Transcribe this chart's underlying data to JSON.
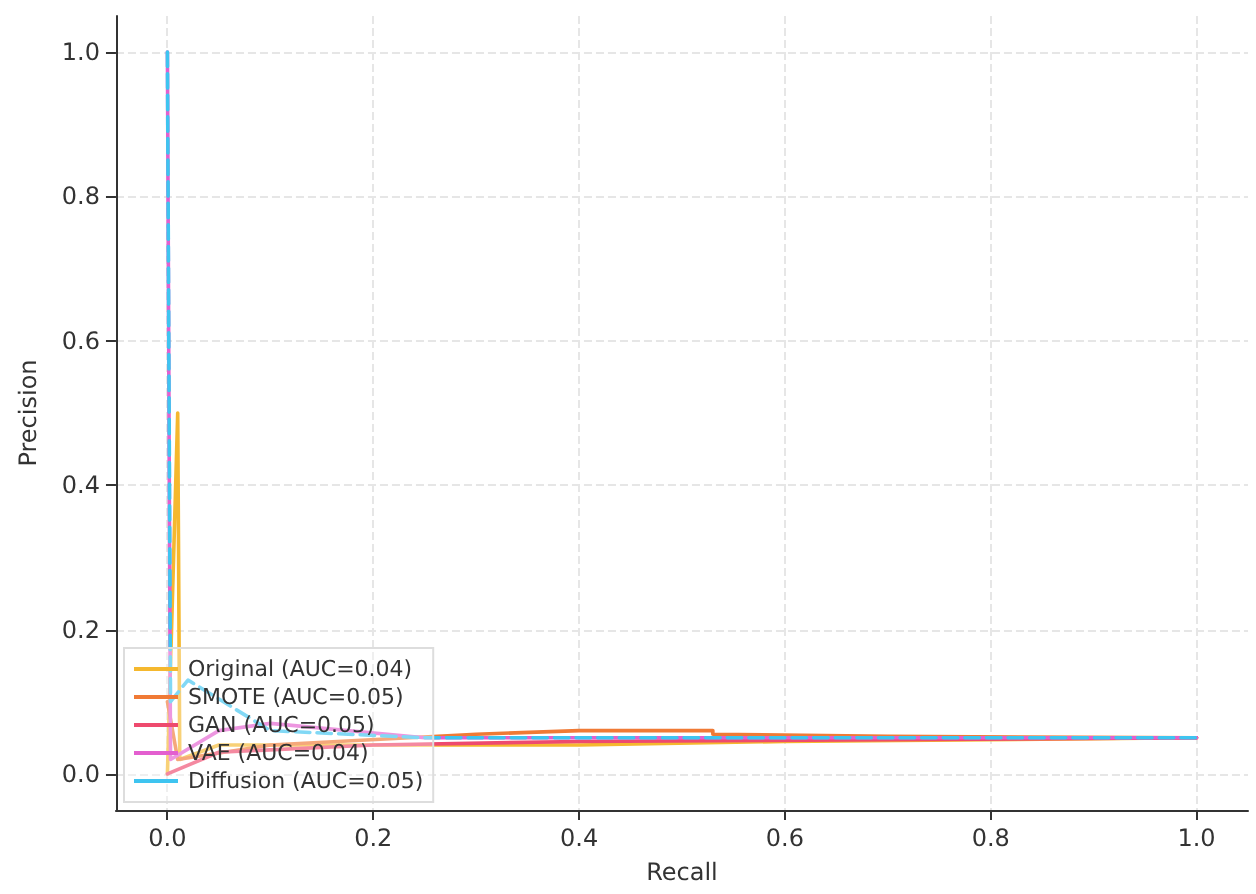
{
  "chart_data": {
    "type": "line",
    "xlabel": "Recall",
    "ylabel": "Precision",
    "xlim": [
      -0.05,
      1.05
    ],
    "xticks": [
      {
        "value": 0,
        "label": "0.0"
      },
      0.2,
      0.4,
      0.6,
      0.8,
      {
        "value": 1,
        "label": "1.0"
      }
    ],
    "ylim": [
      -0.05,
      1.05
    ],
    "yticks": [
      {
        "value": 0,
        "label": "0.0"
      },
      0.2,
      0.4,
      0.6,
      0.8,
      {
        "value": 1,
        "label": "1.0"
      }
    ],
    "grid": true,
    "legend": "bottom left",
    "marker": "none",
    "series": [
      {
        "name": "Original (AUC=0.04)",
        "color": "#f5b82e",
        "x": [
          0,
          0.01,
          0.012,
          0.05,
          0.2,
          0.4,
          0.6,
          1
        ],
        "values": [
          0,
          0.5,
          0.02,
          0.04,
          0.04,
          0.04,
          0.045,
          0.05
        ]
      },
      {
        "name": "SMOTE (AUC=0.05)",
        "color": "#f07a35",
        "x": [
          0,
          0.01,
          0.1,
          0.3,
          0.4,
          0.53,
          0.53,
          0.7,
          1
        ],
        "values": [
          0.1,
          0.02,
          0.04,
          0.055,
          0.06,
          0.06,
          0.055,
          0.052,
          0.05
        ]
      },
      {
        "name": "GAN (AUC=0.05)",
        "color": "#ee4a6e",
        "x": [
          0,
          0.05,
          0.2,
          0.4,
          1
        ],
        "values": [
          0,
          0.03,
          0.04,
          0.045,
          0.05
        ]
      },
      {
        "name": "VAE (AUC=0.04)",
        "color": "#e35fcf",
        "x": [
          0,
          0.003,
          0.05,
          0.1,
          0.25,
          0.5,
          1
        ],
        "values": [
          1,
          0.02,
          0.06,
          0.07,
          0.05,
          0.05,
          0.05
        ]
      },
      {
        "name": "Diffusion (AUC=0.05)",
        "color": "#3ec4f0",
        "line_style": "dashed",
        "x": [
          0,
          0.003,
          0.02,
          0.1,
          0.25,
          0.6,
          1
        ],
        "values": [
          1,
          0.1,
          0.13,
          0.06,
          0.05,
          0.05,
          0.05
        ]
      }
    ]
  }
}
